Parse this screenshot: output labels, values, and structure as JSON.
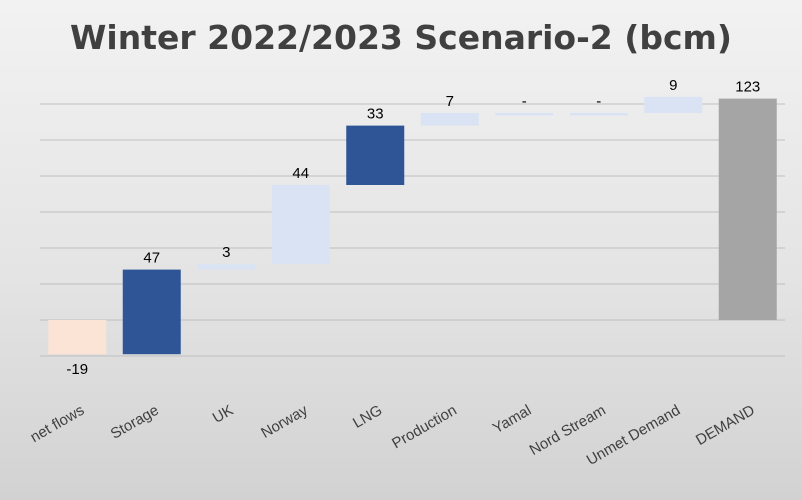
{
  "chart_data": {
    "type": "bar",
    "subtype": "waterfall",
    "title": "Winter 2022/2023 Scenario-2 (bcm)",
    "xlabel": "",
    "ylabel": "",
    "grid": true,
    "legend": "none",
    "categories": [
      "net flows",
      "Storage",
      "UK",
      "Norway",
      "LNG",
      "Production",
      "Yamal",
      "Nord Stream",
      "Unmet Demand",
      "DEMAND"
    ],
    "values": [
      -19,
      47,
      3,
      44,
      33,
      7,
      0,
      0,
      9,
      123
    ],
    "data_labels": [
      "-19",
      "47",
      "3",
      "44",
      "33",
      "7",
      "-",
      "-",
      "9",
      "123"
    ],
    "bar_kind": [
      "decrease",
      "increase",
      "increase",
      "increase",
      "increase",
      "increase",
      "increase",
      "increase",
      "increase",
      "total"
    ],
    "colors": {
      "decrease": "#fbe4d5",
      "increase_dark": "#2f5597",
      "increase_light": "#dae3f3",
      "total": "#a5a5a5",
      "grid": "#bfbfbf",
      "text": "#000000",
      "title": "#404040"
    },
    "dark_bars": [
      "Storage",
      "LNG"
    ]
  }
}
